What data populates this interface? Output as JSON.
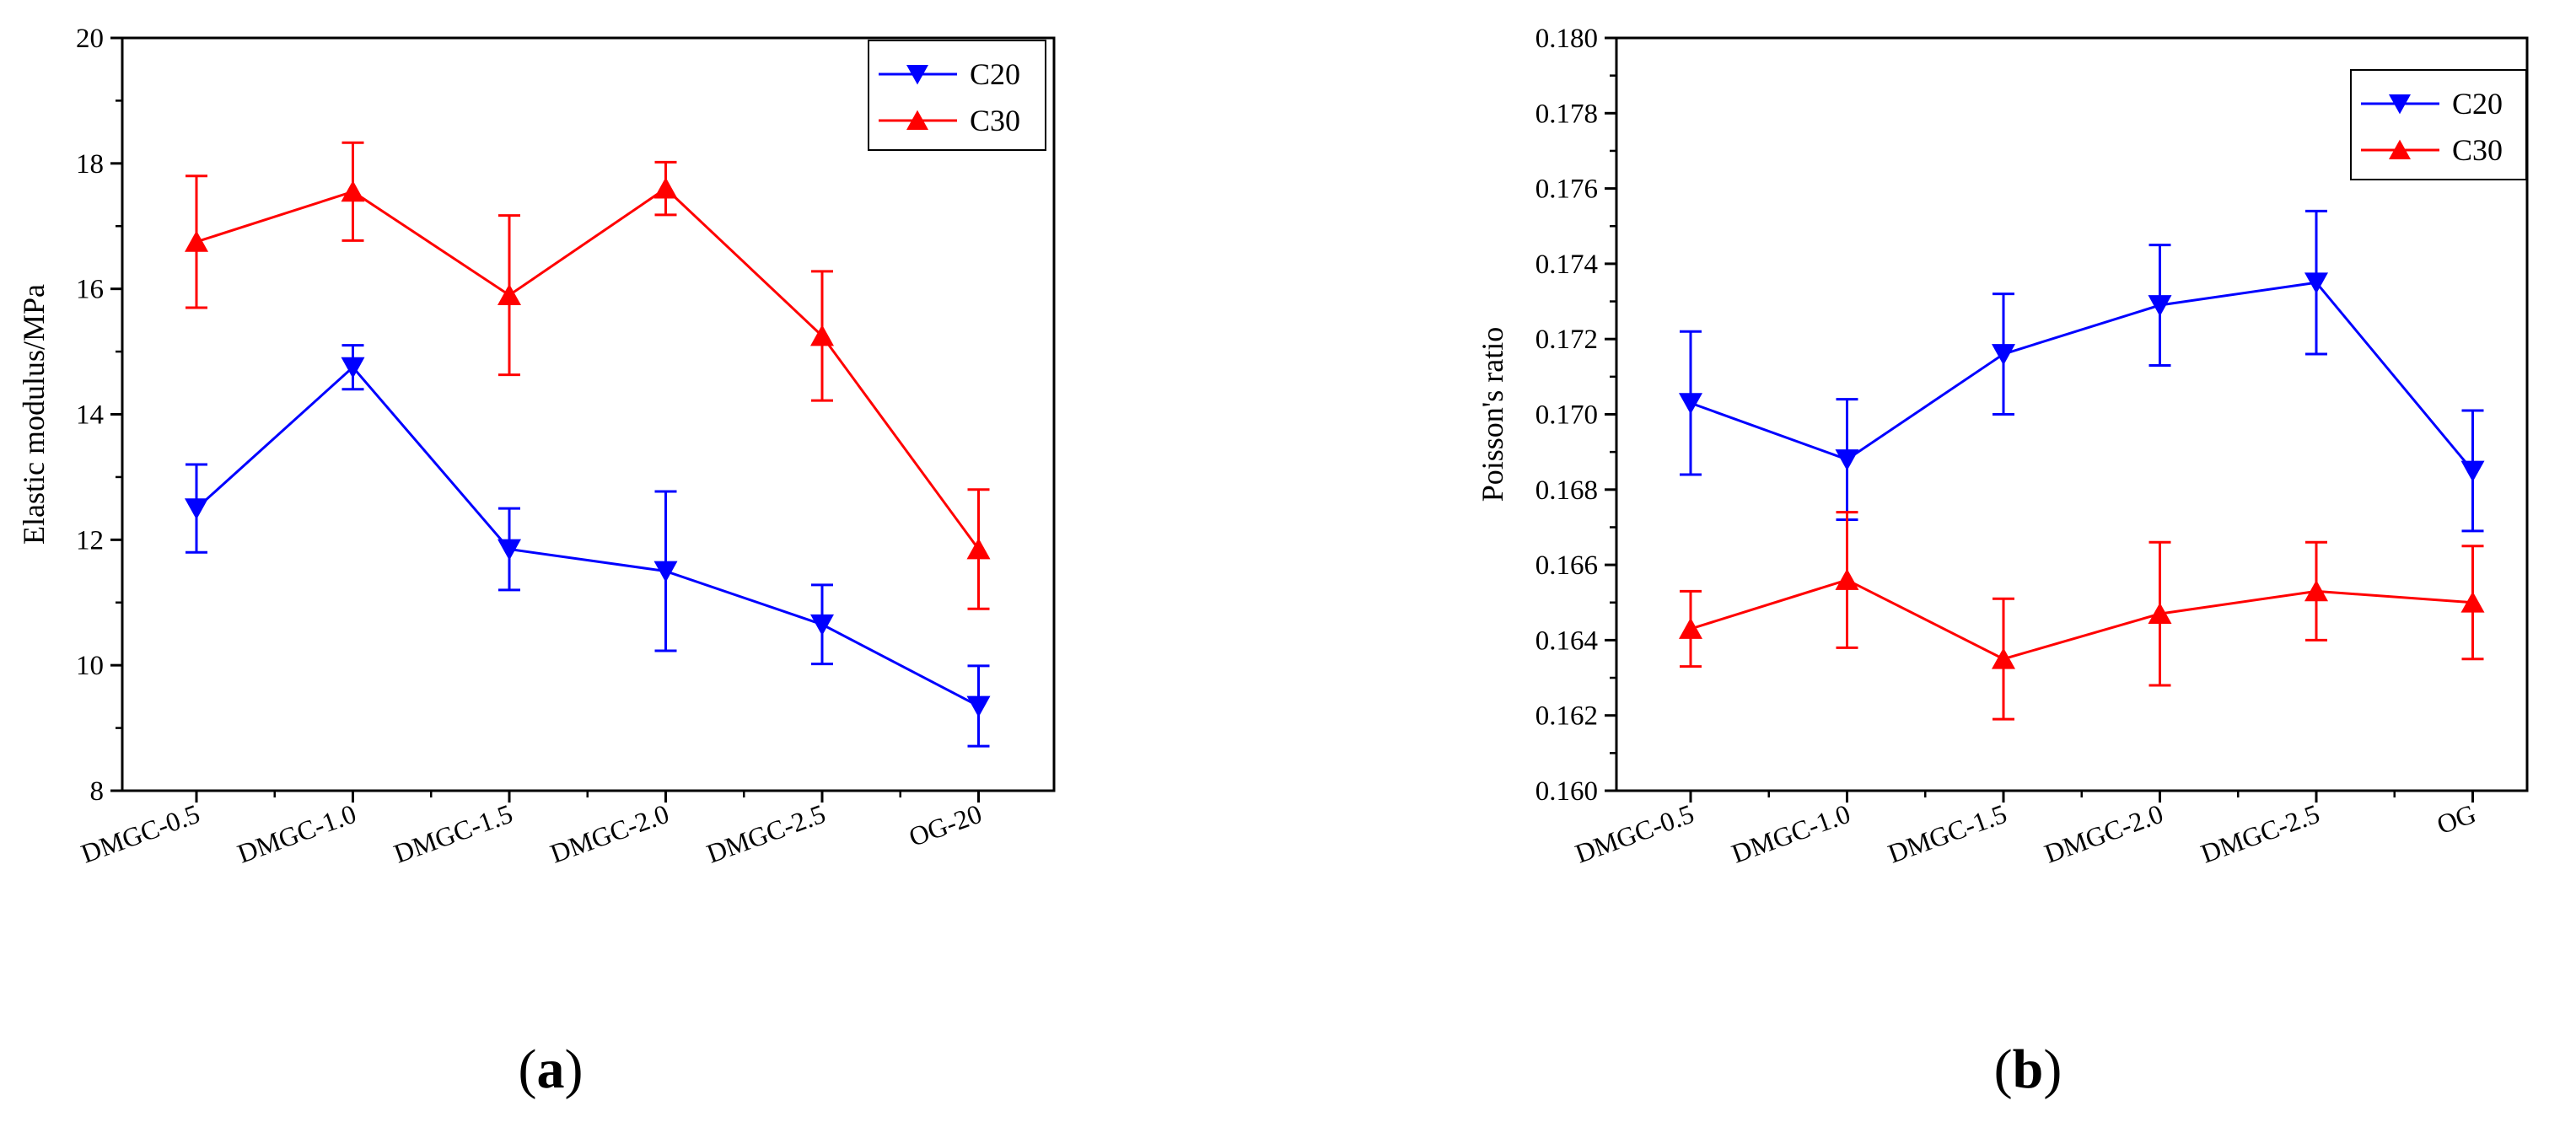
{
  "figure": {
    "panels": [
      {
        "letter": "a",
        "open": "(",
        "close": ")"
      },
      {
        "letter": "b",
        "open": "(",
        "close": ")"
      }
    ]
  },
  "colors": {
    "c20": "#0000ff",
    "c30": "#ff0000"
  },
  "chart_data": [
    {
      "type": "line",
      "title": "",
      "xlabel": "",
      "ylabel": "Elastic modulus/MPa",
      "categories": [
        "DMGC-0.5",
        "DMGC-1.0",
        "DMGC-1.5",
        "DMGC-2.0",
        "DMGC-2.5",
        "OG-20"
      ],
      "ylim": [
        8,
        20
      ],
      "yticks": [
        8,
        10,
        12,
        14,
        16,
        18,
        20
      ],
      "ytick_labels": [
        "8",
        "10",
        "12",
        "14",
        "16",
        "18",
        "20"
      ],
      "legend_position": "top-right",
      "series": [
        {
          "name": "C20",
          "marker": "triangle-down",
          "color": "#0000ff",
          "values": [
            12.5,
            14.75,
            11.85,
            11.5,
            10.65,
            9.35
          ],
          "error": [
            0.7,
            0.35,
            0.65,
            1.27,
            0.63,
            0.64
          ]
        },
        {
          "name": "C30",
          "marker": "triangle-up",
          "color": "#ff0000",
          "values": [
            16.75,
            17.55,
            15.9,
            17.6,
            15.25,
            11.85
          ],
          "error": [
            1.05,
            0.78,
            1.27,
            0.42,
            1.03,
            0.95
          ]
        }
      ]
    },
    {
      "type": "line",
      "title": "",
      "xlabel": "",
      "ylabel": "Poisson's ratio",
      "categories": [
        "DMGC-0.5",
        "DMGC-1.0",
        "DMGC-1.5",
        "DMGC-2.0",
        "DMGC-2.5",
        "OG"
      ],
      "ylim": [
        0.16,
        0.18
      ],
      "yticks": [
        0.16,
        0.162,
        0.164,
        0.166,
        0.168,
        0.17,
        0.172,
        0.174,
        0.176,
        0.178,
        0.18
      ],
      "ytick_labels": [
        "0.160",
        "0.162",
        "0.164",
        "0.166",
        "0.168",
        "0.170",
        "0.172",
        "0.174",
        "0.176",
        "0.178",
        "0.180"
      ],
      "legend_position": "top-right",
      "series": [
        {
          "name": "C20",
          "marker": "triangle-down",
          "color": "#0000ff",
          "values": [
            0.1703,
            0.1688,
            0.1716,
            0.1729,
            0.1735,
            0.1685
          ],
          "error": [
            0.0019,
            0.0016,
            0.0016,
            0.0016,
            0.0019,
            0.0016
          ]
        },
        {
          "name": "C30",
          "marker": "triangle-up",
          "color": "#ff0000",
          "values": [
            0.1643,
            0.1656,
            0.1635,
            0.1647,
            0.1653,
            0.165
          ],
          "error": [
            0.001,
            0.0018,
            0.0016,
            0.0019,
            0.0013,
            0.0015
          ]
        }
      ]
    }
  ]
}
